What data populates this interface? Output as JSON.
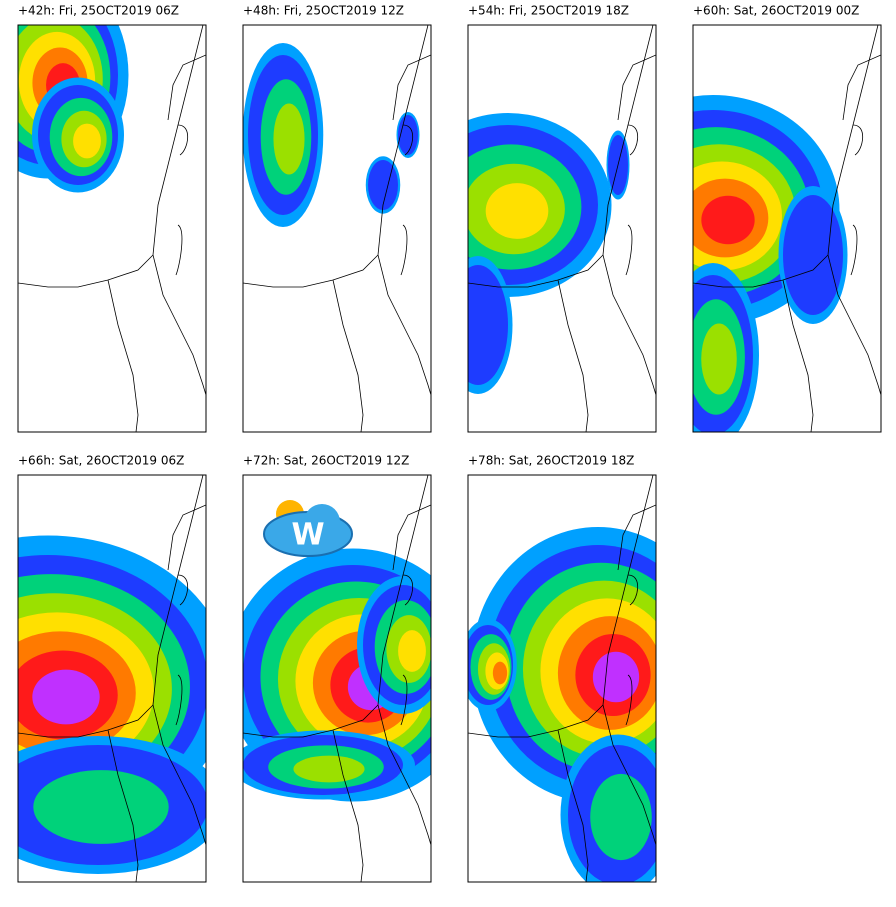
{
  "panels": [
    {
      "title": "+42h: Fri, 25OCT2019 06Z"
    },
    {
      "title": "+48h: Fri, 25OCT2019 12Z"
    },
    {
      "title": "+54h: Fri, 25OCT2019 18Z"
    },
    {
      "title": "+60h: Sat, 26OCT2019 00Z"
    },
    {
      "title": "+66h: Sat, 26OCT2019 06Z"
    },
    {
      "title": "+72h: Sat, 26OCT2019 12Z"
    },
    {
      "title": "+78h: Sat, 26OCT2019 18Z"
    }
  ],
  "logo": "W"
}
